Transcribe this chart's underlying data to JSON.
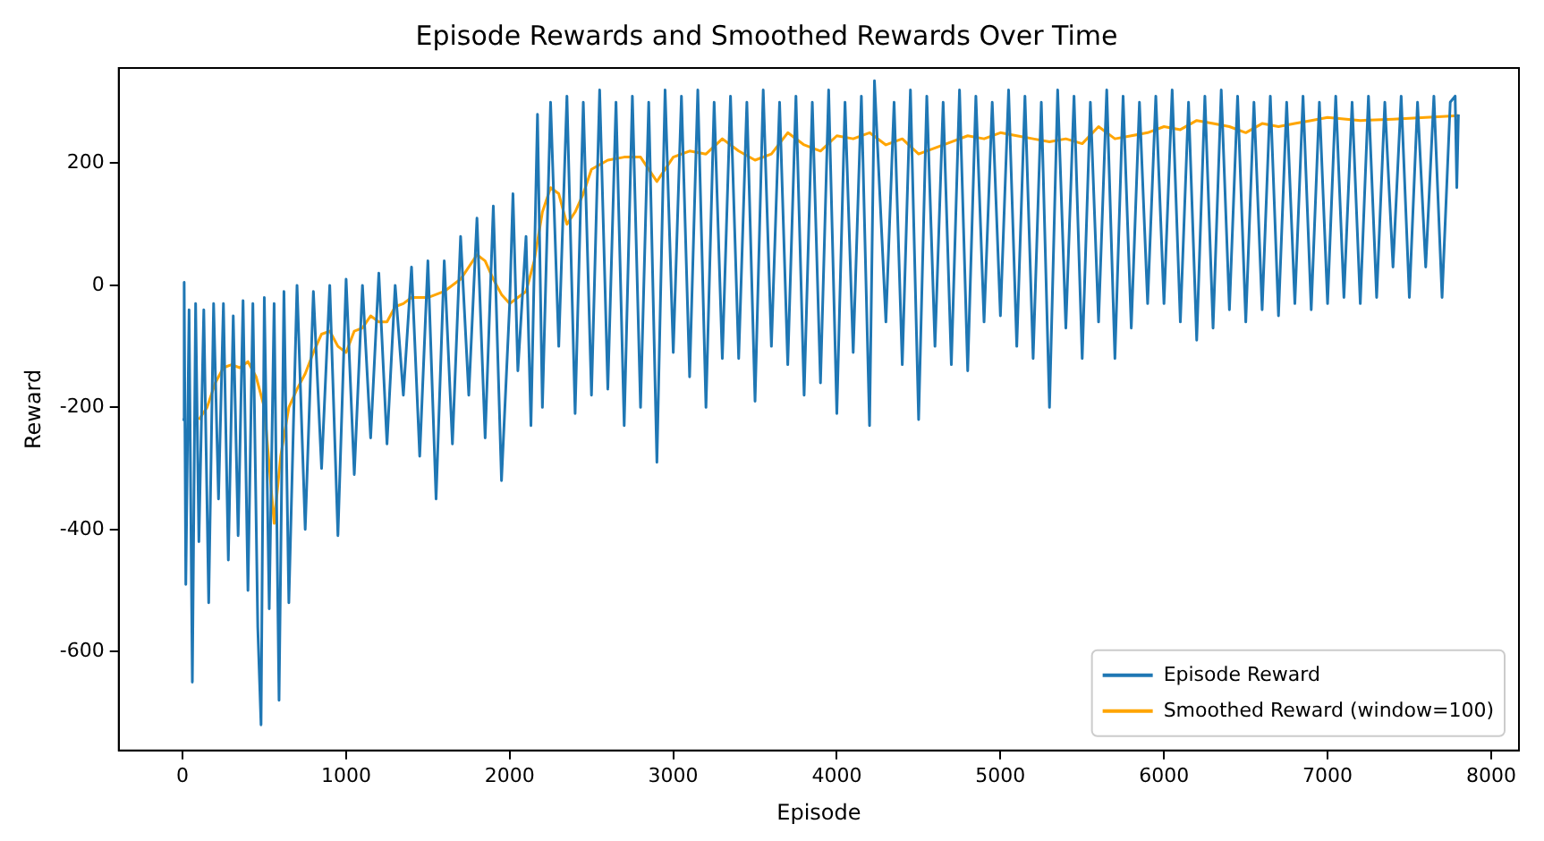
{
  "chart_data": {
    "type": "line",
    "title": "Episode Rewards and Smoothed Rewards Over Time",
    "xlabel": "Episode",
    "ylabel": "Reward",
    "xlim": [
      -390,
      8170
    ],
    "xticks": [
      0,
      1000,
      2000,
      3000,
      4000,
      5000,
      6000,
      7000,
      8000
    ],
    "ylim": [
      -762,
      356
    ],
    "yticks": [
      -600,
      -400,
      -200,
      0,
      200
    ],
    "grid": false,
    "legend": "bottom right",
    "marker": "none",
    "line_style": "solid",
    "series": [
      {
        "name": "Episode Reward",
        "color": "#1f77b4",
        "x": [
          0,
          10,
          20,
          40,
          60,
          80,
          100,
          130,
          160,
          190,
          220,
          250,
          280,
          310,
          340,
          370,
          400,
          430,
          460,
          480,
          500,
          530,
          560,
          590,
          620,
          650,
          700,
          750,
          800,
          850,
          900,
          950,
          1000,
          1050,
          1100,
          1150,
          1200,
          1250,
          1300,
          1350,
          1400,
          1450,
          1500,
          1550,
          1600,
          1650,
          1700,
          1750,
          1800,
          1850,
          1900,
          1950,
          2000,
          2020,
          2050,
          2100,
          2130,
          2170,
          2200,
          2250,
          2300,
          2350,
          2400,
          2450,
          2500,
          2550,
          2600,
          2650,
          2700,
          2750,
          2800,
          2850,
          2900,
          2950,
          3000,
          3050,
          3100,
          3150,
          3200,
          3250,
          3300,
          3350,
          3400,
          3450,
          3500,
          3550,
          3600,
          3650,
          3700,
          3750,
          3800,
          3850,
          3900,
          3950,
          4000,
          4050,
          4100,
          4150,
          4200,
          4230,
          4300,
          4350,
          4400,
          4450,
          4500,
          4550,
          4600,
          4650,
          4700,
          4750,
          4800,
          4850,
          4900,
          4950,
          5000,
          5050,
          5100,
          5150,
          5200,
          5250,
          5300,
          5350,
          5400,
          5450,
          5500,
          5550,
          5600,
          5650,
          5700,
          5750,
          5800,
          5850,
          5900,
          5950,
          6000,
          6050,
          6100,
          6150,
          6200,
          6250,
          6300,
          6350,
          6400,
          6450,
          6500,
          6550,
          6600,
          6650,
          6700,
          6750,
          6800,
          6850,
          6900,
          6950,
          7000,
          7050,
          7100,
          7150,
          7200,
          7250,
          7300,
          7350,
          7400,
          7450,
          7500,
          7550,
          7600,
          7650,
          7700,
          7750,
          7780,
          7790,
          7800
        ],
        "values": [
          -220,
          5,
          -490,
          -40,
          -650,
          -30,
          -420,
          -40,
          -520,
          -30,
          -350,
          -30,
          -450,
          -50,
          -410,
          -25,
          -500,
          -30,
          -560,
          -720,
          -20,
          -530,
          -30,
          -680,
          -10,
          -520,
          0,
          -400,
          -10,
          -300,
          0,
          -410,
          10,
          -310,
          0,
          -250,
          20,
          -260,
          0,
          -180,
          30,
          -280,
          40,
          -350,
          40,
          -260,
          80,
          -180,
          110,
          -250,
          130,
          -320,
          -30,
          150,
          -140,
          80,
          -230,
          280,
          -200,
          300,
          -100,
          310,
          -210,
          300,
          -180,
          320,
          -170,
          300,
          -230,
          310,
          -200,
          300,
          -290,
          320,
          -110,
          310,
          -150,
          320,
          -200,
          300,
          -120,
          310,
          -120,
          300,
          -190,
          320,
          -100,
          300,
          -130,
          310,
          -180,
          300,
          -160,
          320,
          -210,
          300,
          -110,
          310,
          -230,
          335,
          -60,
          300,
          -130,
          320,
          -220,
          310,
          -100,
          300,
          -130,
          320,
          -140,
          310,
          -60,
          300,
          -50,
          320,
          -100,
          310,
          -120,
          300,
          -200,
          320,
          -70,
          310,
          -120,
          300,
          -60,
          320,
          -120,
          310,
          -70,
          300,
          -30,
          310,
          -30,
          320,
          -60,
          300,
          -90,
          310,
          -70,
          320,
          -40,
          310,
          -60,
          300,
          -40,
          310,
          -50,
          300,
          -30,
          310,
          -40,
          300,
          -30,
          310,
          -20,
          300,
          -30,
          310,
          -20,
          300,
          30,
          310,
          -20,
          300,
          30,
          310,
          -20,
          300,
          310,
          160,
          280
        ]
      },
      {
        "name": "Smoothed Reward (window=100)",
        "color": "#ffa500",
        "x": [
          100,
          150,
          200,
          250,
          300,
          350,
          400,
          450,
          500,
          560,
          600,
          650,
          700,
          750,
          800,
          850,
          900,
          950,
          1000,
          1050,
          1100,
          1150,
          1200,
          1250,
          1300,
          1350,
          1400,
          1500,
          1600,
          1700,
          1800,
          1850,
          1900,
          1950,
          2000,
          2050,
          2100,
          2150,
          2200,
          2250,
          2300,
          2350,
          2400,
          2450,
          2500,
          2600,
          2700,
          2800,
          2900,
          3000,
          3100,
          3200,
          3300,
          3400,
          3500,
          3600,
          3700,
          3800,
          3900,
          4000,
          4100,
          4200,
          4300,
          4400,
          4500,
          4600,
          4700,
          4800,
          4900,
          5000,
          5100,
          5200,
          5300,
          5400,
          5500,
          5600,
          5700,
          5800,
          5900,
          6000,
          6100,
          6200,
          6300,
          6400,
          6500,
          6600,
          6700,
          6800,
          6900,
          7000,
          7200,
          7400,
          7600,
          7800
        ],
        "values": [
          -220,
          -200,
          -160,
          -135,
          -130,
          -135,
          -125,
          -150,
          -200,
          -390,
          -280,
          -200,
          -170,
          -145,
          -110,
          -80,
          -75,
          -100,
          -110,
          -75,
          -70,
          -50,
          -60,
          -60,
          -35,
          -30,
          -20,
          -20,
          -10,
          10,
          50,
          40,
          10,
          -15,
          -30,
          -20,
          -10,
          40,
          120,
          160,
          150,
          100,
          120,
          150,
          190,
          205,
          210,
          210,
          170,
          210,
          220,
          215,
          240,
          220,
          205,
          215,
          250,
          230,
          220,
          245,
          240,
          250,
          230,
          240,
          215,
          225,
          235,
          245,
          240,
          250,
          245,
          240,
          235,
          240,
          232,
          260,
          240,
          245,
          250,
          260,
          255,
          270,
          265,
          260,
          250,
          265,
          260,
          265,
          270,
          275,
          270,
          272,
          275,
          278
        ]
      }
    ]
  }
}
